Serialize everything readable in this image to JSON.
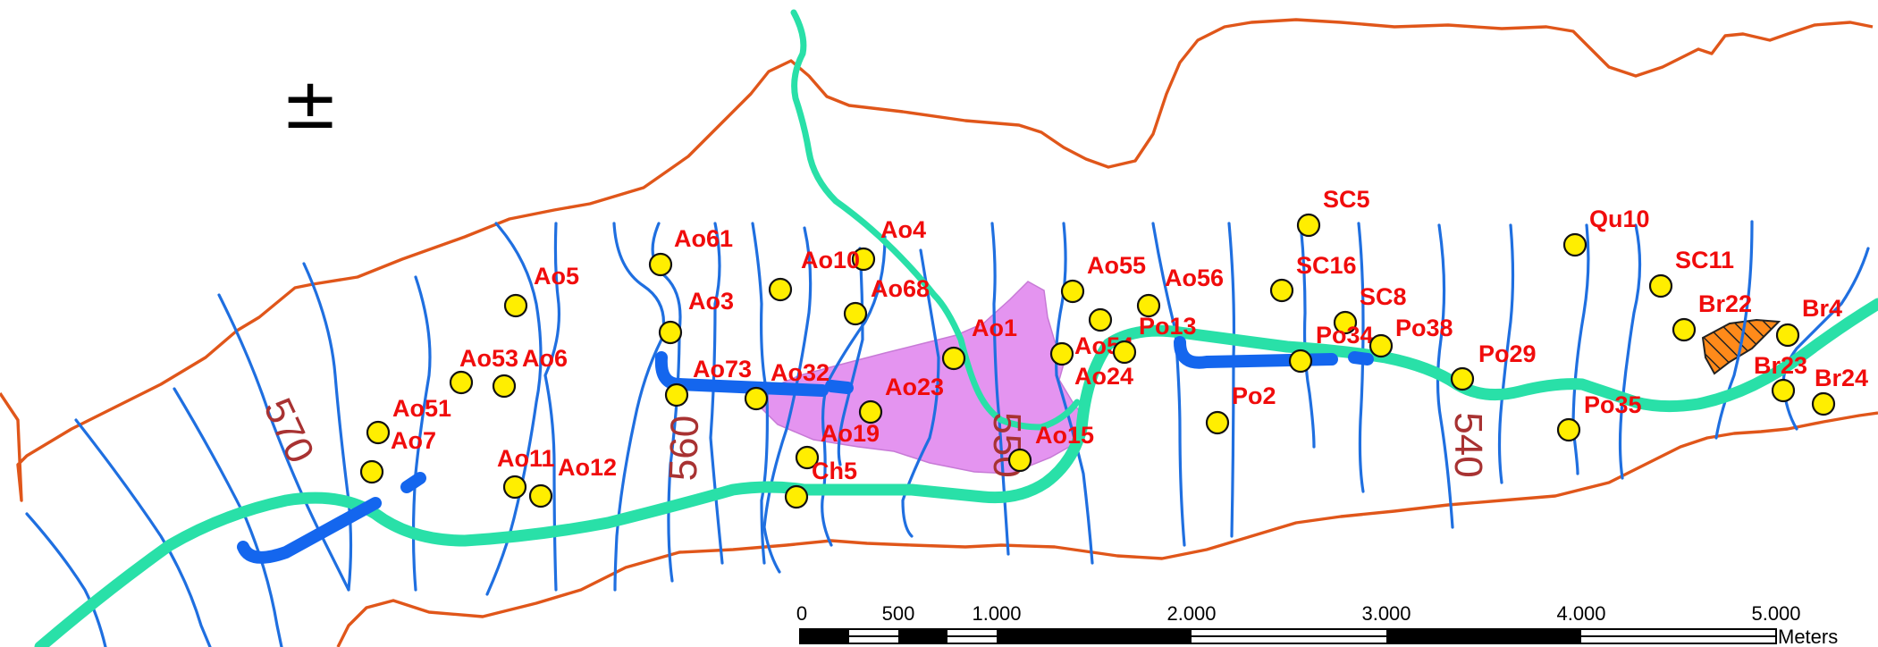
{
  "colors": {
    "boundary": "#e0561a",
    "contour": "#1f6fe0",
    "river": "#29e0a8",
    "structure": "#1466ee",
    "sample_point": "#ffee00",
    "point_label": "#f00c0c",
    "contour_label": "#a83232",
    "purple_area": "#e494f0",
    "hatched_area": "#ff8a1a"
  },
  "north_arrow": "±",
  "contour_labels": [
    "570",
    "560",
    "550",
    "540"
  ],
  "points": [
    {
      "id": "Ao61"
    },
    {
      "id": "Ao4"
    },
    {
      "id": "Ao10"
    },
    {
      "id": "Ao68"
    },
    {
      "id": "Ao3"
    },
    {
      "id": "Ao5"
    },
    {
      "id": "Ao53"
    },
    {
      "id": "Ao6"
    },
    {
      "id": "Ao73"
    },
    {
      "id": "Ao32"
    },
    {
      "id": "Ao23"
    },
    {
      "id": "Ao1"
    },
    {
      "id": "Ao51"
    },
    {
      "id": "Ao7"
    },
    {
      "id": "Ao11"
    },
    {
      "id": "Ao12"
    },
    {
      "id": "Ao19"
    },
    {
      "id": "Ch5"
    },
    {
      "id": "Ao55"
    },
    {
      "id": "Ao56"
    },
    {
      "id": "Ao54"
    },
    {
      "id": "Ao24"
    },
    {
      "id": "Ao15"
    },
    {
      "id": "Po13"
    },
    {
      "id": "SC5"
    },
    {
      "id": "SC16"
    },
    {
      "id": "SC8"
    },
    {
      "id": "Po34"
    },
    {
      "id": "Po38"
    },
    {
      "id": "Po2"
    },
    {
      "id": "Po29"
    },
    {
      "id": "Qu10"
    },
    {
      "id": "SC11"
    },
    {
      "id": "Br22"
    },
    {
      "id": "Br4"
    },
    {
      "id": "Br23"
    },
    {
      "id": "Br24"
    },
    {
      "id": "Po35"
    }
  ],
  "scale_bar": {
    "ticks": [
      "0",
      "500",
      "1.000",
      "2.000",
      "3.000",
      "4.000",
      "5.000"
    ],
    "unit": "Meters"
  }
}
